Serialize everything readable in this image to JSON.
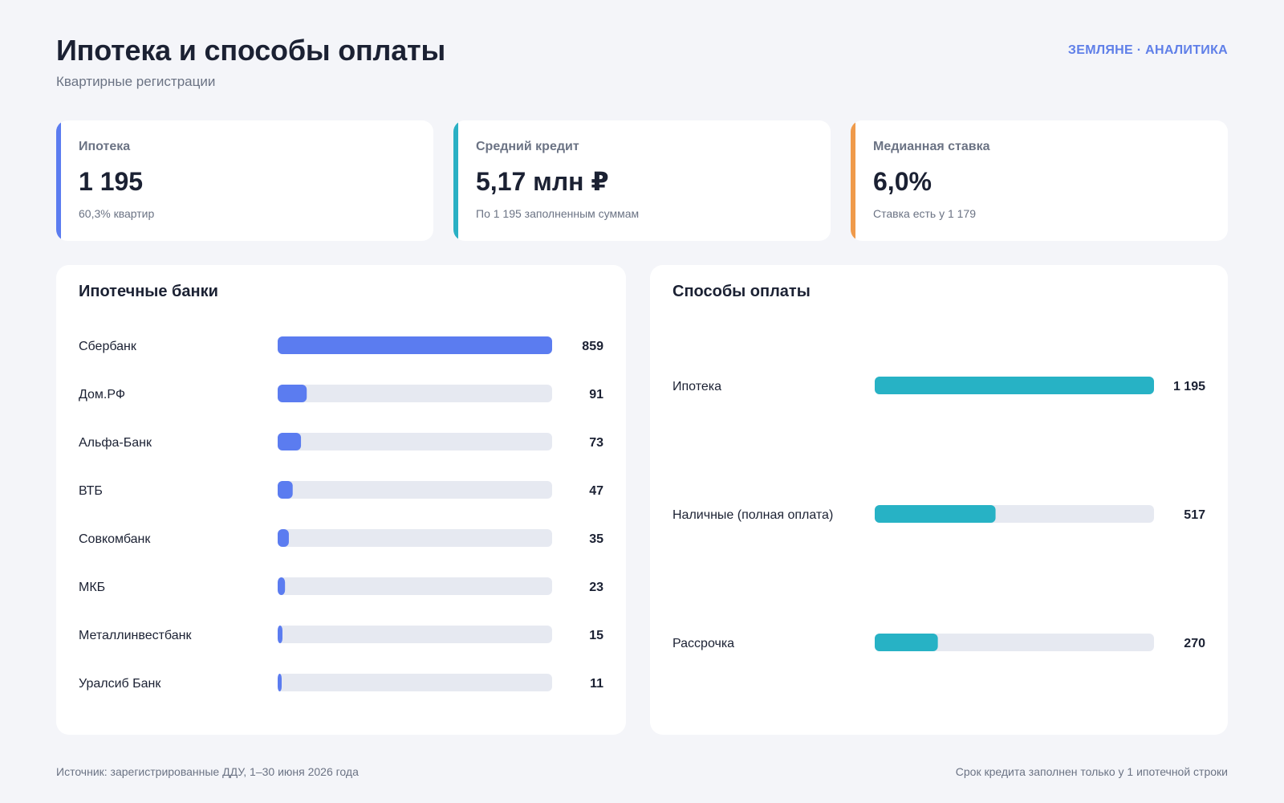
{
  "header": {
    "title": "Ипотека и способы оплаты",
    "subtitle": "Квартирные регистрации",
    "brand": "ЗЕМЛЯНЕ · АНАЛИТИКА"
  },
  "kpis": [
    {
      "label": "Ипотека",
      "value": "1 195",
      "note": "60,3% квартир",
      "accent": "#5b7cf0"
    },
    {
      "label": "Средний кредит",
      "value": "5,17 млн ₽",
      "note": "По 1 195 заполненным суммам",
      "accent": "#2ab0c4"
    },
    {
      "label": "Медианная ставка",
      "value": "6,0%",
      "note": "Ставка есть у 1 179",
      "accent": "#ef9a4b"
    }
  ],
  "colors": {
    "banks_bar": "#5b7cf0",
    "payment_bar": "#27b2c5",
    "track": "#e6e9f1"
  },
  "chart_data": [
    {
      "type": "bar",
      "orientation": "horizontal",
      "title": "Ипотечные банки",
      "categories": [
        "Сбербанк",
        "Дом.РФ",
        "Альфа-Банк",
        "ВТБ",
        "Совкомбанк",
        "МКБ",
        "Металлинвестбанк",
        "Уралсиб Банк"
      ],
      "values": [
        859,
        91,
        73,
        47,
        35,
        23,
        15,
        11
      ],
      "value_labels": [
        "859",
        "91",
        "73",
        "47",
        "35",
        "23",
        "15",
        "11"
      ],
      "xlim": [
        0,
        859
      ]
    },
    {
      "type": "bar",
      "orientation": "horizontal",
      "title": "Способы оплаты",
      "categories": [
        "Ипотека",
        "Наличные (полная оплата)",
        "Рассрочка"
      ],
      "values": [
        1195,
        517,
        270
      ],
      "value_labels": [
        "1 195",
        "517",
        "270"
      ],
      "xlim": [
        0,
        1195
      ]
    }
  ],
  "footer": {
    "source": "Источник: зарегистрированные ДДУ, 1–30 июня 2026 года",
    "note": "Срок кредита заполнен только у 1 ипотечной строки"
  }
}
